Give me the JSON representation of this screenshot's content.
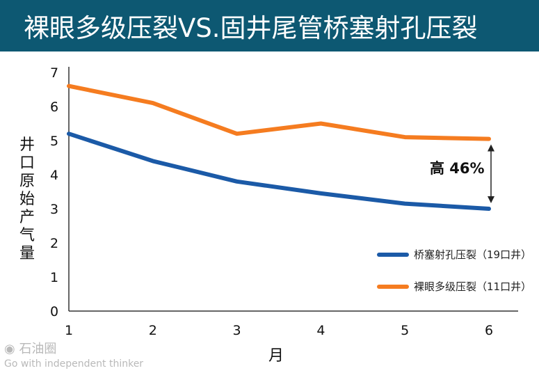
{
  "title": "裸眼多级压裂VS.固井尾管桥塞射孔压裂",
  "chart_data": {
    "type": "line",
    "x": [
      1,
      2,
      3,
      4,
      5,
      6
    ],
    "xlabel": "月",
    "ylabel": "井口原始产气量",
    "xticks": [
      "1",
      "2",
      "3",
      "4",
      "5",
      "6"
    ],
    "yticks": [
      "0",
      "1",
      "2",
      "3",
      "4",
      "5",
      "6",
      "7"
    ],
    "ylim": [
      0,
      7
    ],
    "grid": false,
    "legend_position": "right",
    "series": [
      {
        "name": "桥塞射孔压裂（19口井）",
        "color": "#1b5aa7",
        "values": [
          5.2,
          4.4,
          3.8,
          3.45,
          3.15,
          3.0
        ]
      },
      {
        "name": "裸眼多级压裂（11口井）",
        "color": "#f57c20",
        "values": [
          6.6,
          6.1,
          5.2,
          5.5,
          5.1,
          5.05
        ]
      }
    ],
    "annotation": "高 46%"
  },
  "watermark": {
    "logo": "石油圈",
    "tagline": "Go with independent thinker"
  }
}
